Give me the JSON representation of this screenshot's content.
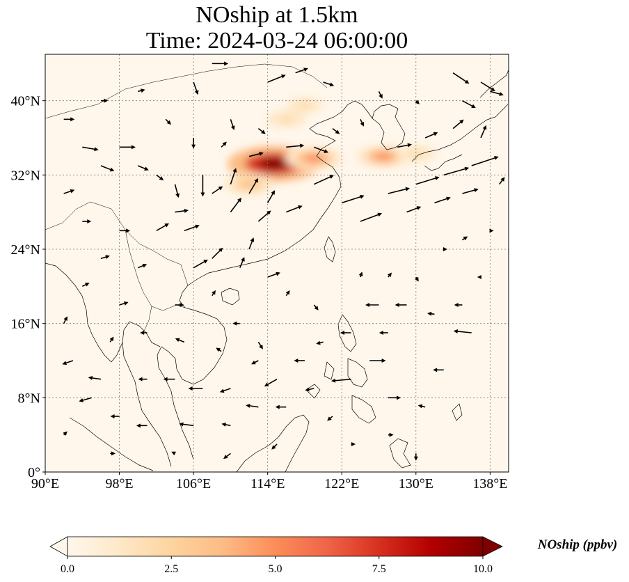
{
  "title": {
    "line1": "NOship at 1.5km",
    "line2": "Time: 2024-03-24 06:00:00"
  },
  "map": {
    "extent": {
      "lon": [
        90,
        140
      ],
      "lat": [
        0,
        45
      ]
    },
    "lon_ticks": [
      90,
      98,
      106,
      114,
      122,
      130,
      138
    ],
    "lon_labels": [
      "90°E",
      "98°E",
      "106°E",
      "114°E",
      "122°E",
      "130°E",
      "138°E"
    ],
    "lat_ticks": [
      0,
      8,
      16,
      24,
      32,
      40
    ],
    "lat_labels": [
      "0°",
      "8°N",
      "16°N",
      "24°N",
      "32°N",
      "40°N"
    ],
    "gridlines": true,
    "gridline_style": "dotted"
  },
  "colorbar": {
    "label": "NOship (ppbv)",
    "range": [
      0,
      10
    ],
    "extend": "both",
    "colormap": "OrRd",
    "ticks": [
      0,
      2.5,
      5,
      7.5,
      10
    ],
    "tick_labels": [
      "0.0",
      "2.5",
      "5.0",
      "7.5",
      "10.0"
    ],
    "colors": [
      "#fff7ec",
      "#fee8c8",
      "#fdd49e",
      "#fdbb84",
      "#fc8d59",
      "#ef6548",
      "#d7301f",
      "#b30000",
      "#7f0000"
    ]
  },
  "plumes": [
    {
      "lon": 114.7,
      "lat": 33.2,
      "value": 10.0
    },
    {
      "lon": 119.0,
      "lat": 33.8,
      "value": 5.0
    },
    {
      "lon": 126.5,
      "lat": 34.0,
      "value": 4.5
    },
    {
      "lon": 112.0,
      "lat": 31.0,
      "value": 4.0
    },
    {
      "lon": 116.0,
      "lat": 38.0,
      "value": 2.5
    },
    {
      "lon": 118.0,
      "lat": 39.5,
      "value": 2.0
    },
    {
      "lon": 130.0,
      "lat": 34.3,
      "value": 2.5
    }
  ],
  "wind_vectors": [
    {
      "lon": 92,
      "lat": 38,
      "u": 1.2,
      "v": 0.0
    },
    {
      "lon": 94,
      "lat": 35,
      "u": 1.8,
      "v": -0.3
    },
    {
      "lon": 96,
      "lat": 33,
      "u": 1.5,
      "v": -0.6
    },
    {
      "lon": 98,
      "lat": 35,
      "u": 1.8,
      "v": 0.0
    },
    {
      "lon": 100,
      "lat": 33,
      "u": 1.2,
      "v": -0.5
    },
    {
      "lon": 102,
      "lat": 32,
      "u": 0.8,
      "v": -0.6
    },
    {
      "lon": 104,
      "lat": 31,
      "u": 0.4,
      "v": -1.5
    },
    {
      "lon": 107,
      "lat": 32,
      "u": 0.0,
      "v": -2.4
    },
    {
      "lon": 108,
      "lat": 30,
      "u": 1.2,
      "v": 0.8
    },
    {
      "lon": 110,
      "lat": 31,
      "u": 0.6,
      "v": 1.8
    },
    {
      "lon": 110,
      "lat": 28,
      "u": 1.2,
      "v": 1.6
    },
    {
      "lon": 112,
      "lat": 30,
      "u": 1.0,
      "v": 1.7
    },
    {
      "lon": 113,
      "lat": 27,
      "u": 1.4,
      "v": 1.2
    },
    {
      "lon": 114,
      "lat": 29,
      "u": 0.8,
      "v": 1.4
    },
    {
      "lon": 112,
      "lat": 24,
      "u": 0.5,
      "v": 1.3
    },
    {
      "lon": 116,
      "lat": 28,
      "u": 1.8,
      "v": 0.7
    },
    {
      "lon": 119,
      "lat": 31,
      "u": 2.2,
      "v": 1.0
    },
    {
      "lon": 122,
      "lat": 29,
      "u": 2.5,
      "v": 0.8
    },
    {
      "lon": 124,
      "lat": 27,
      "u": 2.4,
      "v": 0.9
    },
    {
      "lon": 127,
      "lat": 30,
      "u": 2.4,
      "v": 0.6
    },
    {
      "lon": 130,
      "lat": 31,
      "u": 2.6,
      "v": 0.8
    },
    {
      "lon": 133,
      "lat": 32,
      "u": 2.8,
      "v": 0.8
    },
    {
      "lon": 136,
      "lat": 33,
      "u": 3.0,
      "v": 1.0
    },
    {
      "lon": 129,
      "lat": 28,
      "u": 1.6,
      "v": 0.6
    },
    {
      "lon": 132,
      "lat": 29,
      "u": 1.8,
      "v": 0.6
    },
    {
      "lon": 135,
      "lat": 30,
      "u": 1.8,
      "v": 0.5
    },
    {
      "lon": 128,
      "lat": 35,
      "u": 1.6,
      "v": 0.3
    },
    {
      "lon": 131,
      "lat": 36,
      "u": 1.4,
      "v": 0.6
    },
    {
      "lon": 134,
      "lat": 37,
      "u": 1.2,
      "v": 1.0
    },
    {
      "lon": 137,
      "lat": 36,
      "u": 0.6,
      "v": 1.4
    },
    {
      "lon": 134,
      "lat": 43,
      "u": 1.8,
      "v": -1.2
    },
    {
      "lon": 137,
      "lat": 42,
      "u": 1.6,
      "v": -1.0
    },
    {
      "lon": 135,
      "lat": 40,
      "u": 1.5,
      "v": -0.8
    },
    {
      "lon": 138,
      "lat": 41,
      "u": 1.5,
      "v": -0.4
    },
    {
      "lon": 104,
      "lat": 28,
      "u": 1.5,
      "v": 0.2
    },
    {
      "lon": 102,
      "lat": 26,
      "u": 1.4,
      "v": 0.8
    },
    {
      "lon": 105,
      "lat": 26,
      "u": 1.7,
      "v": 0.6
    },
    {
      "lon": 98,
      "lat": 26,
      "u": 1.2,
      "v": 0.0
    },
    {
      "lon": 94,
      "lat": 27,
      "u": 1.0,
      "v": 0.0
    },
    {
      "lon": 96,
      "lat": 23,
      "u": 1.0,
      "v": 0.3
    },
    {
      "lon": 100,
      "lat": 22,
      "u": 1.0,
      "v": 0.4
    },
    {
      "lon": 106,
      "lat": 22,
      "u": 1.6,
      "v": 0.9
    },
    {
      "lon": 108,
      "lat": 23,
      "u": 1.2,
      "v": 1.2
    },
    {
      "lon": 111,
      "lat": 22,
      "u": 0.5,
      "v": 1.2
    },
    {
      "lon": 114,
      "lat": 21,
      "u": 1.4,
      "v": 0.5
    },
    {
      "lon": 116,
      "lat": 19,
      "u": 0.4,
      "v": 0.6
    },
    {
      "lon": 119,
      "lat": 18,
      "u": 0.5,
      "v": -0.6
    },
    {
      "lon": 124,
      "lat": 21,
      "u": 0.2,
      "v": 0.6
    },
    {
      "lon": 127,
      "lat": 21,
      "u": 0.4,
      "v": 0.5
    },
    {
      "lon": 130,
      "lat": 21,
      "u": 0.3,
      "v": -0.5
    },
    {
      "lon": 126,
      "lat": 18,
      "u": -1.5,
      "v": 0.0
    },
    {
      "lon": 129,
      "lat": 18,
      "u": -1.3,
      "v": 0.0
    },
    {
      "lon": 132,
      "lat": 17,
      "u": -0.8,
      "v": 0.1
    },
    {
      "lon": 135,
      "lat": 18,
      "u": -0.9,
      "v": 0.0
    },
    {
      "lon": 136,
      "lat": 15,
      "u": -2.0,
      "v": 0.2
    },
    {
      "lon": 127,
      "lat": 15,
      "u": -1.0,
      "v": 0.0
    },
    {
      "lon": 123,
      "lat": 15,
      "u": -1.2,
      "v": 0.0
    },
    {
      "lon": 120,
      "lat": 14,
      "u": -0.8,
      "v": -0.2
    },
    {
      "lon": 118,
      "lat": 12,
      "u": -1.2,
      "v": 0.0
    },
    {
      "lon": 115,
      "lat": 10,
      "u": -1.4,
      "v": -0.8
    },
    {
      "lon": 113,
      "lat": 12,
      "u": -0.8,
      "v": -0.4
    },
    {
      "lon": 110,
      "lat": 9,
      "u": -1.2,
      "v": -0.4
    },
    {
      "lon": 107,
      "lat": 9,
      "u": -1.6,
      "v": 0.0
    },
    {
      "lon": 104,
      "lat": 10,
      "u": -1.3,
      "v": 0.0
    },
    {
      "lon": 101,
      "lat": 10,
      "u": -1.0,
      "v": 0.0
    },
    {
      "lon": 96,
      "lat": 10,
      "u": -1.4,
      "v": 0.2
    },
    {
      "lon": 93,
      "lat": 12,
      "u": -1.2,
      "v": -0.4
    },
    {
      "lon": 95,
      "lat": 8,
      "u": -1.4,
      "v": -0.4
    },
    {
      "lon": 98,
      "lat": 6,
      "u": -1.0,
      "v": 0.0
    },
    {
      "lon": 101,
      "lat": 5,
      "u": -1.2,
      "v": 0.0
    },
    {
      "lon": 106,
      "lat": 5,
      "u": -1.6,
      "v": 0.2
    },
    {
      "lon": 110,
      "lat": 5,
      "u": -1.0,
      "v": 0.2
    },
    {
      "lon": 113,
      "lat": 7,
      "u": -1.4,
      "v": 0.2
    },
    {
      "lon": 116,
      "lat": 7,
      "u": -1.2,
      "v": 0.0
    },
    {
      "lon": 119,
      "lat": 9,
      "u": -1.0,
      "v": -0.2
    },
    {
      "lon": 123,
      "lat": 10,
      "u": -2.2,
      "v": -0.2
    },
    {
      "lon": 125,
      "lat": 12,
      "u": 1.8,
      "v": 0.0
    },
    {
      "lon": 127,
      "lat": 8,
      "u": 1.4,
      "v": 0.0
    },
    {
      "lon": 121,
      "lat": 6,
      "u": -0.6,
      "v": -0.5
    },
    {
      "lon": 115,
      "lat": 3,
      "u": -0.6,
      "v": -0.6
    },
    {
      "lon": 110,
      "lat": 2,
      "u": -0.8,
      "v": -0.6
    },
    {
      "lon": 104,
      "lat": 2,
      "u": -0.4,
      "v": 0.2
    },
    {
      "lon": 97,
      "lat": 2,
      "u": 0.6,
      "v": 0.0
    },
    {
      "lon": 92,
      "lat": 4,
      "u": 0.4,
      "v": 0.4
    },
    {
      "lon": 123,
      "lat": 3,
      "u": 0.5,
      "v": 0.0
    },
    {
      "lon": 130,
      "lat": 2,
      "u": 0.0,
      "v": -0.8
    },
    {
      "lon": 127,
      "lat": 4,
      "u": 0.6,
      "v": 0.0
    },
    {
      "lon": 113,
      "lat": 37,
      "u": 0.8,
      "v": -0.6
    },
    {
      "lon": 116,
      "lat": 35,
      "u": 2.0,
      "v": 0.2
    },
    {
      "lon": 112,
      "lat": 34,
      "u": 1.6,
      "v": 0.4
    },
    {
      "lon": 109,
      "lat": 35,
      "u": 0.6,
      "v": 0.6
    },
    {
      "lon": 119,
      "lat": 35,
      "u": 1.6,
      "v": -0.6
    },
    {
      "lon": 121,
      "lat": 37,
      "u": 0.8,
      "v": -0.6
    },
    {
      "lon": 124,
      "lat": 38,
      "u": 0.4,
      "v": -0.8
    },
    {
      "lon": 114,
      "lat": 42,
      "u": 2.0,
      "v": 0.8
    },
    {
      "lon": 117,
      "lat": 43,
      "u": 1.4,
      "v": 0.5
    },
    {
      "lon": 120,
      "lat": 42,
      "u": 1.2,
      "v": -0.4
    },
    {
      "lon": 126,
      "lat": 41,
      "u": 0.4,
      "v": -0.8
    },
    {
      "lon": 108,
      "lat": 44,
      "u": 1.8,
      "v": 0.0
    },
    {
      "lon": 106,
      "lat": 42,
      "u": 0.5,
      "v": -1.4
    },
    {
      "lon": 100,
      "lat": 41,
      "u": 0.8,
      "v": 0.2
    },
    {
      "lon": 96,
      "lat": 40,
      "u": 0.8,
      "v": 0.0
    },
    {
      "lon": 103,
      "lat": 38,
      "u": 0.6,
      "v": -0.6
    },
    {
      "lon": 106,
      "lat": 36,
      "u": 0.0,
      "v": -1.2
    },
    {
      "lon": 110,
      "lat": 38,
      "u": 0.4,
      "v": -1.2
    },
    {
      "lon": 130,
      "lat": 40,
      "u": 0.4,
      "v": -0.4
    },
    {
      "lon": 92,
      "lat": 30,
      "u": 1.2,
      "v": 0.4
    },
    {
      "lon": 94,
      "lat": 20,
      "u": 0.8,
      "v": 0.4
    },
    {
      "lon": 92,
      "lat": 16,
      "u": 0.4,
      "v": 0.8
    },
    {
      "lon": 98,
      "lat": 18,
      "u": 1.0,
      "v": 0.3
    },
    {
      "lon": 104,
      "lat": 18,
      "u": 1.0,
      "v": 0.0
    },
    {
      "lon": 108,
      "lat": 19,
      "u": 0.4,
      "v": 0.6
    },
    {
      "lon": 111,
      "lat": 16,
      "u": -0.8,
      "v": 0.0
    },
    {
      "lon": 113,
      "lat": 14,
      "u": 0.5,
      "v": -0.8
    },
    {
      "lon": 109,
      "lat": 13,
      "u": -0.6,
      "v": 0.4
    },
    {
      "lon": 105,
      "lat": 14,
      "u": -1.0,
      "v": 0.4
    },
    {
      "lon": 101,
      "lat": 15,
      "u": -0.8,
      "v": 0.0
    },
    {
      "lon": 97,
      "lat": 14,
      "u": 0.4,
      "v": 0.6
    },
    {
      "lon": 133,
      "lat": 11,
      "u": -1.2,
      "v": 0.0
    },
    {
      "lon": 131,
      "lat": 7,
      "u": -0.8,
      "v": 0.2
    },
    {
      "lon": 135,
      "lat": 25,
      "u": 0.6,
      "v": 0.4
    },
    {
      "lon": 138,
      "lat": 26,
      "u": 0.4,
      "v": 0.0
    },
    {
      "lon": 133,
      "lat": 24,
      "u": 0.4,
      "v": 0.0
    },
    {
      "lon": 137,
      "lat": 21,
      "u": -0.4,
      "v": 0.0
    },
    {
      "lon": 139,
      "lat": 31,
      "u": 0.6,
      "v": 0.8
    }
  ]
}
